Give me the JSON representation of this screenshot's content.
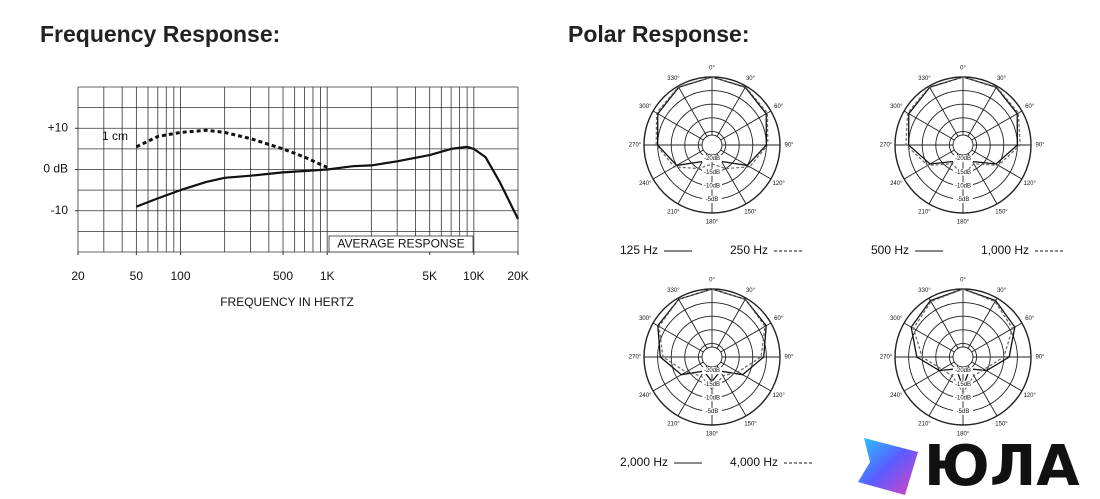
{
  "polar_heading": "Polar Response:",
  "logo": "ЮЛА",
  "chart_data": [
    {
      "type": "line",
      "title": "Frequency Response:",
      "xlabel": "FREQUENCY IN HERTZ",
      "xscale": "log",
      "xlim": [
        20,
        20000
      ],
      "xticks": [
        20,
        50,
        100,
        500,
        {
          "value": 1000,
          "label": "1K"
        },
        {
          "value": 5000,
          "label": "5K"
        },
        {
          "value": 10000,
          "label": "10K"
        },
        {
          "value": 20000,
          "label": "20K"
        }
      ],
      "xgrid": [
        20,
        30,
        40,
        50,
        60,
        70,
        80,
        90,
        100,
        200,
        300,
        400,
        500,
        600,
        700,
        800,
        900,
        1000,
        2000,
        3000,
        4000,
        5000,
        6000,
        7000,
        8000,
        9000,
        10000,
        20000
      ],
      "ylim": [
        -20,
        20
      ],
      "yticks": [
        {
          "value": 10,
          "label": "+10"
        },
        {
          "value": 0,
          "label": "0 dB"
        },
        -10
      ],
      "ygrid": [
        -20,
        -15,
        -10,
        -5,
        0,
        5,
        10,
        15,
        20
      ],
      "series": [
        {
          "name": "1 cm",
          "color": "#111111",
          "dash": true,
          "x": [
            50,
            70,
            100,
            150,
            200,
            300,
            500,
            700,
            1000
          ],
          "values": [
            5.5,
            8,
            9,
            9.5,
            9,
            7.5,
            5,
            3,
            0.5
          ]
        },
        {
          "name": "AVERAGE RESPONSE",
          "color": "#111111",
          "dash": false,
          "x": [
            50,
            70,
            100,
            150,
            200,
            300,
            500,
            1000,
            1500,
            2000,
            3000,
            5000,
            7000,
            9000,
            10000,
            12000,
            15000,
            20000
          ],
          "values": [
            -9,
            -7,
            -5,
            -3,
            -2,
            -1.5,
            -0.7,
            0,
            0.8,
            1,
            2,
            3.5,
            5,
            5.5,
            5,
            3,
            -3,
            -12
          ]
        }
      ]
    },
    {
      "type": "polar",
      "x": [
        0,
        30,
        60,
        90,
        120,
        150,
        180,
        210,
        240,
        270,
        300,
        330
      ],
      "xticks": [
        {
          "value": 0,
          "label": "0°"
        },
        {
          "value": 30,
          "label": "30°"
        },
        {
          "value": 60,
          "label": "60°"
        },
        {
          "value": 90,
          "label": "90°"
        },
        {
          "value": 120,
          "label": "120°"
        },
        {
          "value": 150,
          "label": "150°"
        },
        {
          "value": 180,
          "label": "180°"
        },
        {
          "value": 210,
          "label": "210°"
        },
        {
          "value": 240,
          "label": "240°"
        },
        {
          "value": 270,
          "label": "270°"
        },
        {
          "value": 300,
          "label": "300°"
        },
        {
          "value": 330,
          "label": "330°"
        }
      ],
      "rlim": [
        -25,
        0
      ],
      "rticks": [
        {
          "value": -20,
          "label": "-20dB"
        },
        {
          "value": -15,
          "label": "-15dB"
        },
        {
          "value": -10,
          "label": "-10dB"
        },
        {
          "value": -5,
          "label": "-5dB"
        }
      ],
      "series": [
        {
          "name": "125 Hz",
          "color": "#111111",
          "dash": false,
          "values": [
            0,
            -0.5,
            -2,
            -5,
            -10,
            -18,
            -20,
            -18,
            -10,
            -5,
            -2,
            -0.5
          ]
        },
        {
          "name": "250 Hz",
          "color": "#666666",
          "dash": true,
          "values": [
            0,
            -0.3,
            -1.5,
            -4.5,
            -9,
            -15,
            -18,
            -15,
            -9,
            -4.5,
            -1.5,
            -0.3
          ]
        }
      ]
    },
    {
      "type": "polar",
      "x": [
        0,
        30,
        60,
        90,
        120,
        150,
        180,
        210,
        240,
        270,
        300,
        330
      ],
      "xticks": [
        {
          "value": 0,
          "label": "0°"
        },
        {
          "value": 30,
          "label": "30°"
        },
        {
          "value": 60,
          "label": "60°"
        },
        {
          "value": 90,
          "label": "90°"
        },
        {
          "value": 120,
          "label": "120°"
        },
        {
          "value": 150,
          "label": "150°"
        },
        {
          "value": 180,
          "label": "180°"
        },
        {
          "value": 210,
          "label": "210°"
        },
        {
          "value": 240,
          "label": "240°"
        },
        {
          "value": 270,
          "label": "270°"
        },
        {
          "value": 300,
          "label": "300°"
        },
        {
          "value": 330,
          "label": "330°"
        }
      ],
      "rlim": [
        -25,
        0
      ],
      "rticks": [
        {
          "value": -20,
          "label": "-20dB"
        },
        {
          "value": -15,
          "label": "-15dB"
        },
        {
          "value": -10,
          "label": "-10dB"
        },
        {
          "value": -5,
          "label": "-5dB"
        }
      ],
      "series": [
        {
          "name": "500 Hz",
          "color": "#111111",
          "dash": false,
          "values": [
            0,
            -0.5,
            -2,
            -5,
            -11,
            -18,
            -20,
            -18,
            -11,
            -5,
            -2,
            -0.5
          ]
        },
        {
          "name": "1,000 Hz",
          "color": "#666666",
          "dash": true,
          "values": [
            0,
            -0.3,
            -1.5,
            -4,
            -10,
            -17,
            -14,
            -17,
            -10,
            -4,
            -1.5,
            -0.3
          ]
        }
      ]
    },
    {
      "type": "polar",
      "x": [
        0,
        30,
        60,
        90,
        120,
        150,
        180,
        210,
        240,
        270,
        300,
        330
      ],
      "xticks": [
        {
          "value": 0,
          "label": "0°"
        },
        {
          "value": 30,
          "label": "30°"
        },
        {
          "value": 60,
          "label": "60°"
        },
        {
          "value": 90,
          "label": "90°"
        },
        {
          "value": 120,
          "label": "120°"
        },
        {
          "value": 150,
          "label": "150°"
        },
        {
          "value": 180,
          "label": "180°"
        },
        {
          "value": 210,
          "label": "210°"
        },
        {
          "value": 240,
          "label": "240°"
        },
        {
          "value": 270,
          "label": "270°"
        },
        {
          "value": 300,
          "label": "300°"
        },
        {
          "value": 330,
          "label": "330°"
        }
      ],
      "rlim": [
        -25,
        0
      ],
      "rticks": [
        {
          "value": -20,
          "label": "-20dB"
        },
        {
          "value": -15,
          "label": "-15dB"
        },
        {
          "value": -10,
          "label": "-10dB"
        },
        {
          "value": -5,
          "label": "-5dB"
        }
      ],
      "series": [
        {
          "name": "2,000 Hz",
          "color": "#111111",
          "dash": false,
          "values": [
            0,
            -0.5,
            -2,
            -6,
            -12,
            -19,
            -16,
            -19,
            -12,
            -6,
            -2,
            -0.5
          ]
        },
        {
          "name": "4,000 Hz",
          "color": "#666666",
          "dash": true,
          "values": [
            0,
            -0.5,
            -2.5,
            -7,
            -14,
            -17,
            -13,
            -17,
            -14,
            -7,
            -2.5,
            -0.5
          ]
        }
      ]
    },
    {
      "type": "polar",
      "x": [
        0,
        30,
        60,
        90,
        120,
        150,
        180,
        210,
        240,
        270,
        300,
        330
      ],
      "xticks": [
        {
          "value": 0,
          "label": "0°"
        },
        {
          "value": 30,
          "label": "30°"
        },
        {
          "value": 60,
          "label": "60°"
        },
        {
          "value": 90,
          "label": "90°"
        },
        {
          "value": 120,
          "label": "120°"
        },
        {
          "value": 150,
          "label": "150°"
        },
        {
          "value": 180,
          "label": "180°"
        },
        {
          "value": 210,
          "label": "210°"
        },
        {
          "value": 240,
          "label": "240°"
        },
        {
          "value": 270,
          "label": "270°"
        },
        {
          "value": 300,
          "label": "300°"
        },
        {
          "value": 330,
          "label": "330°"
        }
      ],
      "rlim": [
        -25,
        0
      ],
      "rticks": [
        {
          "value": -20,
          "label": "-20dB"
        },
        {
          "value": -15,
          "label": "-15dB"
        },
        {
          "value": -10,
          "label": "-10dB"
        },
        {
          "value": -5,
          "label": "-5dB"
        }
      ],
      "series": [
        {
          "color": "#111111",
          "dash": false,
          "values": [
            0,
            -1,
            -3,
            -8,
            -15,
            -20,
            -14,
            -20,
            -15,
            -8,
            -3,
            -1
          ]
        },
        {
          "color": "#666666",
          "dash": true,
          "values": [
            0,
            -1.5,
            -4,
            -10,
            -16,
            -17,
            -12,
            -17,
            -16,
            -10,
            -4,
            -1.5
          ]
        }
      ]
    }
  ]
}
